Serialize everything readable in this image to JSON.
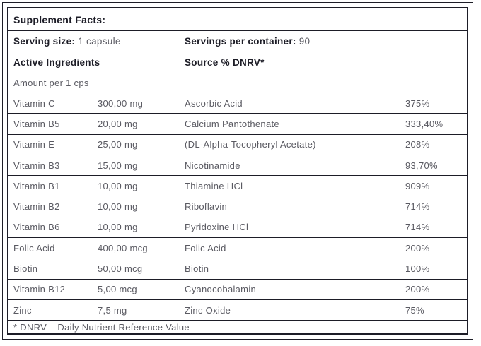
{
  "colors": {
    "dark_text": "#1d1d27",
    "muted_text": "#5a5a62",
    "border": "#1d1d27",
    "background": "#ffffff"
  },
  "table": {
    "title": "Supplement Facts:",
    "serving": {
      "size_label": "Serving size:",
      "size_value": "1 capsule",
      "container_label": "Servings per container:",
      "container_value": "90"
    },
    "column_headers": {
      "active_ingredients": "Active Ingredients",
      "source": "Source % DNRV*"
    },
    "amount_header": "Amount per 1 cps",
    "rows": [
      {
        "name": "Vitamin C",
        "amount": "300,00 mg",
        "source": "Ascorbic Acid",
        "dnrv": "375%"
      },
      {
        "name": "Vitamin B5",
        "amount": "20,00 mg",
        "source": "Calcium Pantothenate",
        "dnrv": "333,40%"
      },
      {
        "name": "Vitamin E",
        "amount": "25,00 mg",
        "source": "(DL-Alpha-Tocopheryl Acetate)",
        "dnrv": "208%"
      },
      {
        "name": "Vitamin B3",
        "amount": "15,00 mg",
        "source": "Nicotinamide",
        "dnrv": "93,70%"
      },
      {
        "name": "Vitamin B1",
        "amount": "10,00 mg",
        "source": "Thiamine HCl",
        "dnrv": "909%"
      },
      {
        "name": "Vitamin B2",
        "amount": "10,00 mg",
        "source": "Riboflavin",
        "dnrv": "714%"
      },
      {
        "name": "Vitamin B6",
        "amount": "10,00 mg",
        "source": "Pyridoxine HCl",
        "dnrv": "714%"
      },
      {
        "name": "Folic Acid",
        "amount": "400,00 mcg",
        "source": "Folic Acid",
        "dnrv": "200%"
      },
      {
        "name": "Biotin",
        "amount": "50,00 mcg",
        "source": "Biotin",
        "dnrv": "100%"
      },
      {
        "name": "Vitamin B12",
        "amount": "5,00 mcg",
        "source": "Cyanocobalamin",
        "dnrv": "200%"
      },
      {
        "name": "Zinc",
        "amount": "7,5 mg",
        "source": "Zinc Oxide",
        "dnrv": "75%"
      }
    ],
    "footnote": "* DNRV – Daily Nutrient Reference Value"
  }
}
